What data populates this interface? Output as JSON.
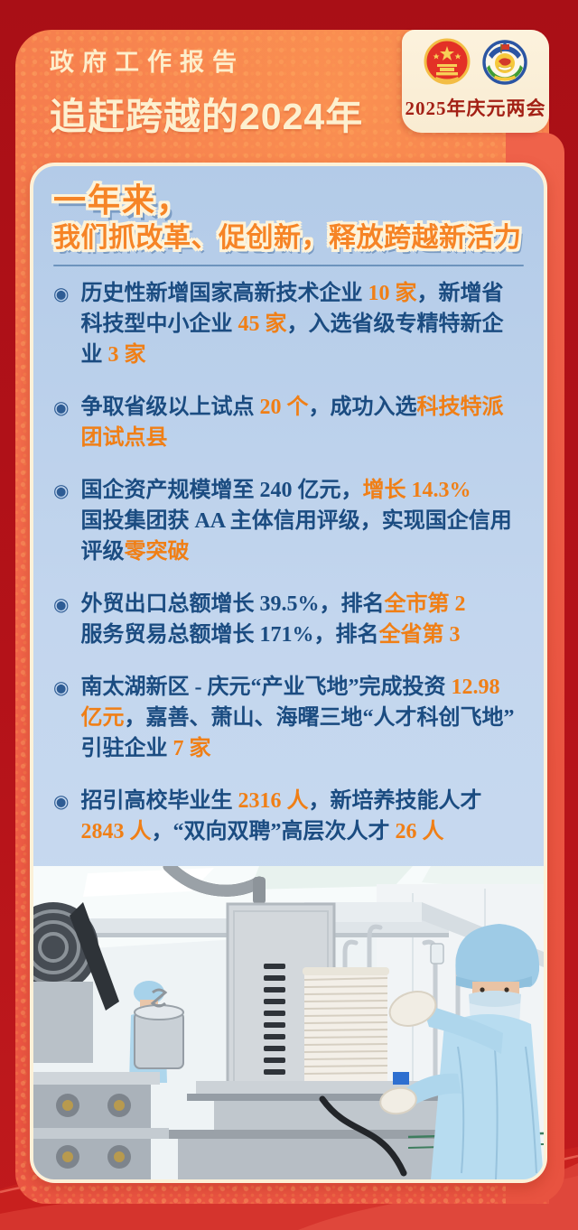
{
  "poster": {
    "header": {
      "kicker": "政府工作报告",
      "title": "追赶跨越的2024年"
    },
    "badge": {
      "label": "2025年庆元两会",
      "emblem_icons": [
        "national-emblem-icon",
        "cppcc-emblem-icon"
      ]
    },
    "card": {
      "title_lines": [
        "一年来，",
        "我们抓改革、促创新，释放跨越新活力"
      ],
      "bullets": [
        {
          "lines": [
            [
              {
                "t": "历史性新增国家高新技术企业 "
              },
              {
                "t": "10 家",
                "hl": true
              },
              {
                "t": "，新增省"
              }
            ],
            [
              {
                "t": "科技型中小企业 "
              },
              {
                "t": "45 家",
                "hl": true
              },
              {
                "t": "，入选省级专精特新企"
              }
            ],
            [
              {
                "t": "业 "
              },
              {
                "t": "3 家",
                "hl": true
              }
            ]
          ]
        },
        {
          "lines": [
            [
              {
                "t": "争取省级以上试点 "
              },
              {
                "t": "20 个",
                "hl": true
              },
              {
                "t": "，成功入选"
              },
              {
                "t": "科技特派",
                "hl": true
              }
            ],
            [
              {
                "t": "团试点县",
                "hl": true
              }
            ]
          ]
        },
        {
          "lines": [
            [
              {
                "t": "国企资产规模增至 240 亿元，"
              },
              {
                "t": "增长 14.3%",
                "hl": true
              }
            ],
            [
              {
                "t": "国投集团获 AA 主体信用评级，实现国企信用"
              }
            ],
            [
              {
                "t": "评级"
              },
              {
                "t": "零突破",
                "hl": true
              }
            ]
          ]
        },
        {
          "lines": [
            [
              {
                "t": "外贸出口总额增长 39.5%，排名"
              },
              {
                "t": "全市第 2",
                "hl": true
              }
            ],
            [
              {
                "t": "服务贸易总额增长 171%，排名"
              },
              {
                "t": "全省第 3",
                "hl": true
              }
            ]
          ]
        },
        {
          "lines": [
            [
              {
                "t": "南太湖新区 - 庆元“产业飞地”完成投资 "
              },
              {
                "t": "12.98",
                "hl": true
              }
            ],
            [
              {
                "t": "亿元",
                "hl": true
              },
              {
                "t": "，嘉善、萧山、海曙三地“人才科创飞地”"
              }
            ],
            [
              {
                "t": "引驻企业 "
              },
              {
                "t": "7 家",
                "hl": true
              }
            ]
          ]
        },
        {
          "lines": [
            [
              {
                "t": "招引高校毕业生 "
              },
              {
                "t": "2316 人",
                "hl": true
              },
              {
                "t": "，新培养技能人才"
              }
            ],
            [
              {
                "t": "2843 人",
                "hl": true
              },
              {
                "t": "，“双向双聘”高层次人才 "
              },
              {
                "t": "26 人",
                "hl": true
              }
            ]
          ]
        }
      ]
    },
    "icons": {
      "bullet_glyph": "◉"
    },
    "colors": {
      "background_red": "#b01118",
      "panel_orange": "#f06247",
      "card_blue": "#bfd4ec",
      "cream": "#fbeed8",
      "accent_orange": "#f58220",
      "text_navy": "#1b4c81",
      "badge_text_red": "#a32015"
    }
  }
}
